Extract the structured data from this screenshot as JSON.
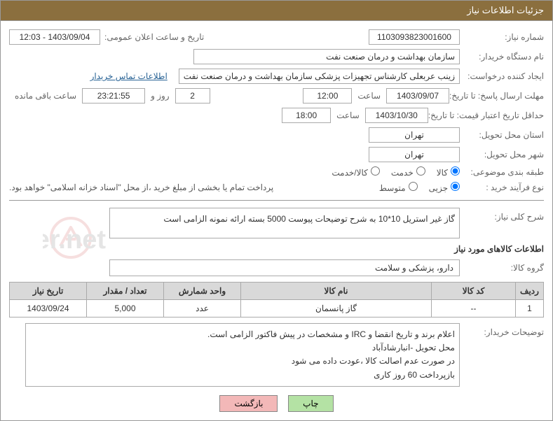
{
  "header_title": "جزئیات اطلاعات نیاز",
  "labels": {
    "need_no": "شماره نیاز:",
    "announce_dt": "تاریخ و ساعت اعلان عمومی:",
    "buyer_org": "نام دستگاه خریدار:",
    "requester": "ایجاد کننده درخواست:",
    "buyer_contact": "اطلاعات تماس خریدار",
    "reply_deadline": "مهلت ارسال پاسخ: تا تاریخ:",
    "hour": "ساعت",
    "days_and": "روز و",
    "time_left": "ساعت باقی مانده",
    "price_validity": "حداقل تاریخ اعتبار قیمت: تا تاریخ:",
    "delivery_province": "استان محل تحویل:",
    "delivery_city": "شهر محل تحویل:",
    "category": "طبقه بندی موضوعی:",
    "purchase_type": "نوع فرآیند خرید :",
    "payment_note": "پرداخت تمام یا بخشی از مبلغ خرید ،از محل \"اسناد خزانه اسلامی\" خواهد بود.",
    "need_desc": "شرح کلی نیاز:",
    "goods_info_title": "اطلاعات کالاهای مورد نیاز",
    "goods_group": "گروه کالا:",
    "buyer_remarks": "توضیحات خریدار:"
  },
  "values": {
    "need_no": "1103093823001600",
    "announce_dt": "1403/09/04 - 12:03",
    "buyer_org": "سازمان بهداشت و درمان صنعت نفت",
    "requester": "زینب عربعلی کارشناس تجهیزات پزشکی سازمان بهداشت و درمان صنعت نفت",
    "reply_date": "1403/09/07",
    "reply_hour": "12:00",
    "days_left": "2",
    "countdown": "23:21:55",
    "price_validity_date": "1403/10/30",
    "price_validity_hour": "18:00",
    "province": "تهران",
    "city": "تهران",
    "need_desc": "گاز غیر استریل 10*10 به شرح توضیحات پیوست 5000 بسته ارائه نمونه الزامی است",
    "goods_group": "دارو، پزشکی و سلامت",
    "buyer_remarks": "اعلام برند و تاریخ انقضا  و IRC  و مشخصات  در پیش فاکتور الزامی است.\nمحل تحویل -انبارشادآباد\nدر صورت عدم اصالت کالا ،عودت داده می شود\nبازپرداخت 60 روز کاری"
  },
  "radios": {
    "category": {
      "goods": "کالا",
      "service": "خدمت",
      "both": "کالا/خدمت",
      "selected": "goods"
    },
    "purchase": {
      "partial": "جزیی",
      "medium": "متوسط",
      "selected": "partial"
    }
  },
  "table": {
    "columns": [
      "ردیف",
      "کد کالا",
      "نام کالا",
      "واحد شمارش",
      "تعداد / مقدار",
      "تاریخ نیاز"
    ],
    "col_widths": [
      "40px",
      "120px",
      "auto",
      "110px",
      "110px",
      "110px"
    ],
    "rows": [
      [
        "1",
        "--",
        "گاز پانسمان",
        "عدد",
        "5,000",
        "1403/09/24"
      ]
    ]
  },
  "buttons": {
    "print": "چاپ",
    "back": "بازگشت"
  },
  "colors": {
    "header_bg": "#8b6f3e",
    "th_bg": "#d9d9d9",
    "btn_print": "#b4e2a4",
    "btn_back": "#f3b8b8"
  }
}
